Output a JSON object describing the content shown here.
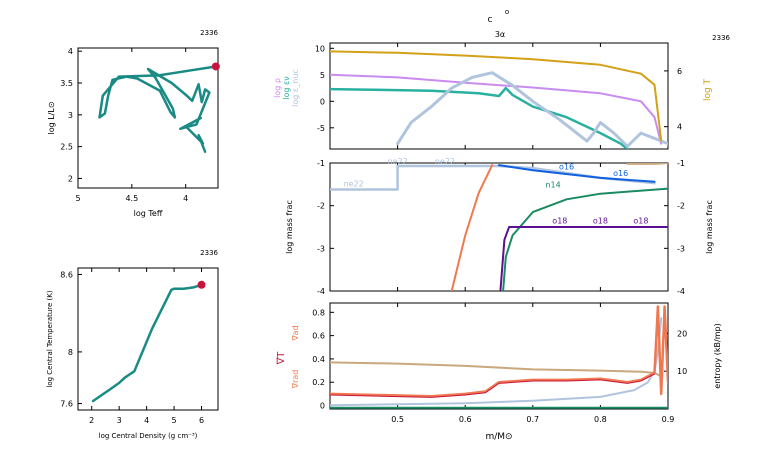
{
  "model_number": "2336",
  "top_title": {
    "line1": "c",
    "line1_sup": "o",
    "line2": "3α"
  },
  "colors": {
    "teal": "#1a8a84",
    "red": "#c8143c",
    "gold": "#d4a017",
    "lavender": "#c88cf0",
    "sky": "#b0c4de",
    "seafoam": "#2ab0a0",
    "tan": "#c8a87c",
    "orange": "#f07850",
    "blue": "#1060e0",
    "purple": "#5a1090",
    "green": "#1a8a60"
  },
  "chart_data": [
    {
      "name": "hr",
      "type": "line",
      "model_label": "2336",
      "xlabel": "log Teff",
      "ylabel": "log L/L⊙",
      "xlim": [
        5.0,
        3.7
      ],
      "ylim": [
        1.85,
        4.05
      ],
      "xticks": [
        {
          "v": 5,
          "label": "5"
        },
        {
          "v": 4.5,
          "label": "4.5"
        },
        {
          "v": 4,
          "label": "4"
        }
      ],
      "yticks": [
        {
          "v": 2,
          "label": "2"
        },
        {
          "v": 2.5,
          "label": "2.5"
        },
        {
          "v": 3,
          "label": "3"
        },
        {
          "v": 3.5,
          "label": "3.5"
        },
        {
          "v": 4,
          "label": "4"
        }
      ],
      "track": [
        [
          3.82,
          2.42
        ],
        [
          3.88,
          2.68
        ],
        [
          3.84,
          2.55
        ],
        [
          4.0,
          2.82
        ],
        [
          3.86,
          2.95
        ],
        [
          4.05,
          2.78
        ],
        [
          3.9,
          2.85
        ],
        [
          3.78,
          3.35
        ],
        [
          3.82,
          3.4
        ],
        [
          3.85,
          3.2
        ],
        [
          3.88,
          3.48
        ],
        [
          3.94,
          3.22
        ],
        [
          3.99,
          3.3
        ],
        [
          4.13,
          3.5
        ],
        [
          4.35,
          3.72
        ],
        [
          4.28,
          3.58
        ],
        [
          4.12,
          3.1
        ],
        [
          4.1,
          2.96
        ],
        [
          4.14,
          3.04
        ],
        [
          4.24,
          3.38
        ],
        [
          4.45,
          3.57
        ],
        [
          4.55,
          3.6
        ],
        [
          4.68,
          3.55
        ],
        [
          4.72,
          3.3
        ],
        [
          4.75,
          3.02
        ],
        [
          4.8,
          2.96
        ],
        [
          4.77,
          3.3
        ],
        [
          4.62,
          3.6
        ],
        [
          4.25,
          3.62
        ],
        [
          3.95,
          3.7
        ],
        [
          3.72,
          3.76
        ]
      ],
      "current": [
        3.72,
        3.76
      ]
    },
    {
      "name": "center",
      "type": "line",
      "model_label": "2336",
      "xlabel": "log Central Density (g cm⁻³)",
      "ylabel": "log Central Temperature (K)",
      "xlim": [
        1.5,
        6.6
      ],
      "ylim": [
        7.55,
        8.65
      ],
      "xticks": [
        {
          "v": 2,
          "label": "2"
        },
        {
          "v": 3,
          "label": "3"
        },
        {
          "v": 4,
          "label": "4"
        },
        {
          "v": 5,
          "label": "5"
        },
        {
          "v": 6,
          "label": "6"
        }
      ],
      "yticks": [
        {
          "v": 7.6,
          "label": "7.6"
        },
        {
          "v": 8,
          "label": "8"
        },
        {
          "v": 8.6,
          "label": "8.6"
        }
      ],
      "track": [
        [
          2.05,
          7.62
        ],
        [
          2.6,
          7.7
        ],
        [
          3.0,
          7.76
        ],
        [
          3.2,
          7.8
        ],
        [
          3.55,
          7.85
        ],
        [
          4.2,
          8.18
        ],
        [
          4.9,
          8.48
        ],
        [
          5.0,
          8.49
        ],
        [
          5.35,
          8.49
        ],
        [
          5.7,
          8.5
        ],
        [
          6.0,
          8.52
        ]
      ],
      "current": [
        6.0,
        8.52
      ]
    },
    {
      "name": "profile-top",
      "type": "line",
      "xlim": [
        0.4,
        0.9
      ],
      "ylim": [
        -9,
        11
      ],
      "y2lim": [
        3.2,
        7.0
      ],
      "yticks": [
        {
          "v": -5,
          "label": "-5"
        },
        {
          "v": 0,
          "label": "0"
        },
        {
          "v": 5,
          "label": "5"
        },
        {
          "v": 10,
          "label": "10"
        }
      ],
      "y2ticks": [
        {
          "v": 4,
          "label": "4"
        },
        {
          "v": 6,
          "label": "6"
        }
      ],
      "left_labels": [
        "log ρ",
        "log εν",
        "log ε_nuc"
      ],
      "right_label": "log T",
      "series": [
        {
          "name": "log ρ",
          "axis": "left",
          "color": "lavender",
          "width": 2,
          "points": [
            [
              0.4,
              5.0
            ],
            [
              0.5,
              4.5
            ],
            [
              0.6,
              3.5
            ],
            [
              0.7,
              2.6
            ],
            [
              0.8,
              1.5
            ],
            [
              0.86,
              0
            ],
            [
              0.88,
              -3
            ],
            [
              0.89,
              -8
            ]
          ]
        },
        {
          "name": "log εν",
          "axis": "left",
          "color": "seafoam",
          "width": 2.5,
          "points": [
            [
              0.4,
              2.3
            ],
            [
              0.55,
              2.0
            ],
            [
              0.62,
              1.5
            ],
            [
              0.65,
              1.0
            ],
            [
              0.66,
              2.5
            ],
            [
              0.67,
              1.2
            ],
            [
              0.7,
              -1
            ],
            [
              0.75,
              -3
            ],
            [
              0.8,
              -6
            ],
            [
              0.83,
              -8
            ],
            [
              0.84,
              -9
            ]
          ]
        },
        {
          "name": "log ε_nuc",
          "axis": "left",
          "color": "sky",
          "width": 3,
          "points": [
            [
              0.5,
              -8
            ],
            [
              0.52,
              -4
            ],
            [
              0.55,
              -1
            ],
            [
              0.58,
              2.5
            ],
            [
              0.61,
              4.5
            ],
            [
              0.64,
              5.4
            ],
            [
              0.67,
              3
            ],
            [
              0.7,
              0
            ],
            [
              0.74,
              -3.5
            ],
            [
              0.78,
              -7.5
            ],
            [
              0.79,
              -6
            ],
            [
              0.8,
              -4
            ],
            [
              0.82,
              -6
            ],
            [
              0.84,
              -8.5
            ],
            [
              0.86,
              -6
            ],
            [
              0.88,
              -7
            ],
            [
              0.9,
              -8
            ]
          ]
        },
        {
          "name": "log T",
          "axis": "right",
          "color": "gold",
          "width": 2,
          "points": [
            [
              0.4,
              6.7
            ],
            [
              0.5,
              6.65
            ],
            [
              0.6,
              6.55
            ],
            [
              0.7,
              6.42
            ],
            [
              0.8,
              6.22
            ],
            [
              0.86,
              5.9
            ],
            [
              0.88,
              5.5
            ],
            [
              0.89,
              3.5
            ]
          ]
        }
      ]
    },
    {
      "name": "profile-mid",
      "type": "line",
      "xlim": [
        0.4,
        0.9
      ],
      "ylim": [
        -4,
        -1
      ],
      "yticks": [
        {
          "v": -4,
          "label": "-4"
        },
        {
          "v": -3,
          "label": "-3"
        },
        {
          "v": -2,
          "label": "-2"
        },
        {
          "v": -1,
          "label": "-1"
        }
      ],
      "ylabel": "log mass frac",
      "series": [
        {
          "name": "ne22",
          "color": "sky",
          "width": 2.5,
          "points": [
            [
              0.4,
              -1.62
            ],
            [
              0.5,
              -1.62
            ],
            [
              0.5,
              -1.07
            ],
            [
              0.65,
              -1.07
            ],
            [
              0.7,
              -1.12
            ],
            [
              0.8,
              -1.35
            ],
            [
              0.88,
              -1.47
            ]
          ]
        },
        {
          "name": "n14",
          "color": "green",
          "width": 2,
          "points": [
            [
              0.656,
              -4
            ],
            [
              0.66,
              -3.2
            ],
            [
              0.67,
              -2.7
            ],
            [
              0.7,
              -2.15
            ],
            [
              0.75,
              -1.85
            ],
            [
              0.8,
              -1.72
            ],
            [
              0.9,
              -1.6
            ]
          ]
        },
        {
          "name": "o18",
          "color": "purple",
          "width": 2,
          "points": [
            [
              0.652,
              -4
            ],
            [
              0.658,
              -2.8
            ],
            [
              0.665,
              -2.5
            ],
            [
              0.9,
              -2.5
            ]
          ]
        },
        {
          "name": "o16",
          "color": "blue",
          "width": 2,
          "points": [
            [
              0.65,
              -1.05
            ],
            [
              0.7,
              -1.17
            ],
            [
              0.8,
              -1.35
            ],
            [
              0.88,
              -1.44
            ]
          ]
        },
        {
          "name": "c12",
          "color": "orange",
          "width": 2,
          "points": [
            [
              0.58,
              -4
            ],
            [
              0.6,
              -2.7
            ],
            [
              0.62,
              -1.7
            ],
            [
              0.64,
              -1.05
            ]
          ]
        },
        {
          "name": "he4",
          "color": "tan",
          "width": 2,
          "points": [
            [
              0.84,
              -1.02
            ],
            [
              0.88,
              -1.02
            ],
            [
              0.9,
              -1.0
            ]
          ]
        }
      ],
      "labels": [
        {
          "text": "ne22",
          "x": 0.435,
          "y": -1.55,
          "color": "sky"
        },
        {
          "text": "ne22",
          "x": 0.5,
          "y": -1.02,
          "color": "sky"
        },
        {
          "text": "ne22",
          "x": 0.57,
          "y": -1.02,
          "color": "sky"
        },
        {
          "text": "o16",
          "x": 0.75,
          "y": -1.15,
          "color": "blue"
        },
        {
          "text": "o16",
          "x": 0.83,
          "y": -1.3,
          "color": "blue"
        },
        {
          "text": "n14",
          "x": 0.73,
          "y": -1.58,
          "color": "green"
        },
        {
          "text": "o18",
          "x": 0.74,
          "y": -2.42,
          "color": "purple"
        },
        {
          "text": "o18",
          "x": 0.8,
          "y": -2.42,
          "color": "purple"
        },
        {
          "text": "o18",
          "x": 0.86,
          "y": -2.42,
          "color": "purple"
        }
      ]
    },
    {
      "name": "profile-bottom",
      "type": "line",
      "xlim": [
        0.4,
        0.9
      ],
      "ylim": [
        -0.03,
        0.88
      ],
      "y2lim": [
        0,
        28
      ],
      "xlabel": "m/M⊙",
      "xticks": [
        {
          "v": 0.5,
          "label": "0.5"
        },
        {
          "v": 0.6,
          "label": "0.6"
        },
        {
          "v": 0.7,
          "label": "0.7"
        },
        {
          "v": 0.8,
          "label": "0.8"
        },
        {
          "v": 0.9,
          "label": "0.9"
        }
      ],
      "yticks": [
        {
          "v": 0,
          "label": "0"
        },
        {
          "v": 0.2,
          "label": "0.2"
        },
        {
          "v": 0.4,
          "label": "0.4"
        },
        {
          "v": 0.6,
          "label": "0.6"
        },
        {
          "v": 0.8,
          "label": "0.8"
        }
      ],
      "y2ticks": [
        {
          "v": 10,
          "label": "10"
        },
        {
          "v": 20,
          "label": "20"
        }
      ],
      "left_labels": [
        "∇ad",
        "∇T",
        "∇rad"
      ],
      "right_label": "entropy (kB/mp)",
      "series": [
        {
          "name": "∇ad",
          "axis": "left",
          "color": "tan",
          "width": 2,
          "points": [
            [
              0.4,
              0.37
            ],
            [
              0.5,
              0.36
            ],
            [
              0.6,
              0.34
            ],
            [
              0.7,
              0.31
            ],
            [
              0.8,
              0.3
            ],
            [
              0.86,
              0.29
            ],
            [
              0.88,
              0.28
            ],
            [
              0.89,
              0.25
            ]
          ]
        },
        {
          "name": "entropy",
          "axis": "right",
          "color": "sky",
          "width": 2,
          "points": [
            [
              0.4,
              1
            ],
            [
              0.6,
              1.5
            ],
            [
              0.7,
              2.2
            ],
            [
              0.8,
              3.2
            ],
            [
              0.85,
              5
            ],
            [
              0.87,
              7
            ],
            [
              0.88,
              10
            ],
            [
              0.885,
              15
            ],
            [
              0.89,
              24
            ]
          ]
        },
        {
          "name": "∇rad",
          "axis": "left",
          "color": "orange",
          "width": 2.5,
          "points": [
            [
              0.4,
              0.1
            ],
            [
              0.55,
              0.08
            ],
            [
              0.6,
              0.1
            ],
            [
              0.63,
              0.12
            ],
            [
              0.65,
              0.2
            ],
            [
              0.7,
              0.22
            ],
            [
              0.75,
              0.22
            ],
            [
              0.8,
              0.23
            ],
            [
              0.84,
              0.2
            ],
            [
              0.86,
              0.22
            ],
            [
              0.88,
              0.28
            ],
            [
              0.885,
              0.85
            ],
            [
              0.89,
              0.1
            ],
            [
              0.895,
              0.85
            ],
            [
              0.9,
              0.2
            ]
          ]
        },
        {
          "name": "∇T",
          "axis": "left",
          "color": "red",
          "width": 1,
          "points": [
            [
              0.4,
              0.09
            ],
            [
              0.55,
              0.07
            ],
            [
              0.6,
              0.09
            ],
            [
              0.63,
              0.11
            ],
            [
              0.65,
              0.19
            ],
            [
              0.7,
              0.21
            ],
            [
              0.75,
              0.21
            ],
            [
              0.8,
              0.22
            ],
            [
              0.84,
              0.19
            ],
            [
              0.86,
              0.21
            ],
            [
              0.88,
              0.27
            ]
          ]
        },
        {
          "name": "green-base",
          "axis": "left",
          "color": "green",
          "width": 2,
          "points": [
            [
              0.4,
              -0.02
            ],
            [
              0.9,
              -0.02
            ]
          ]
        }
      ]
    }
  ]
}
